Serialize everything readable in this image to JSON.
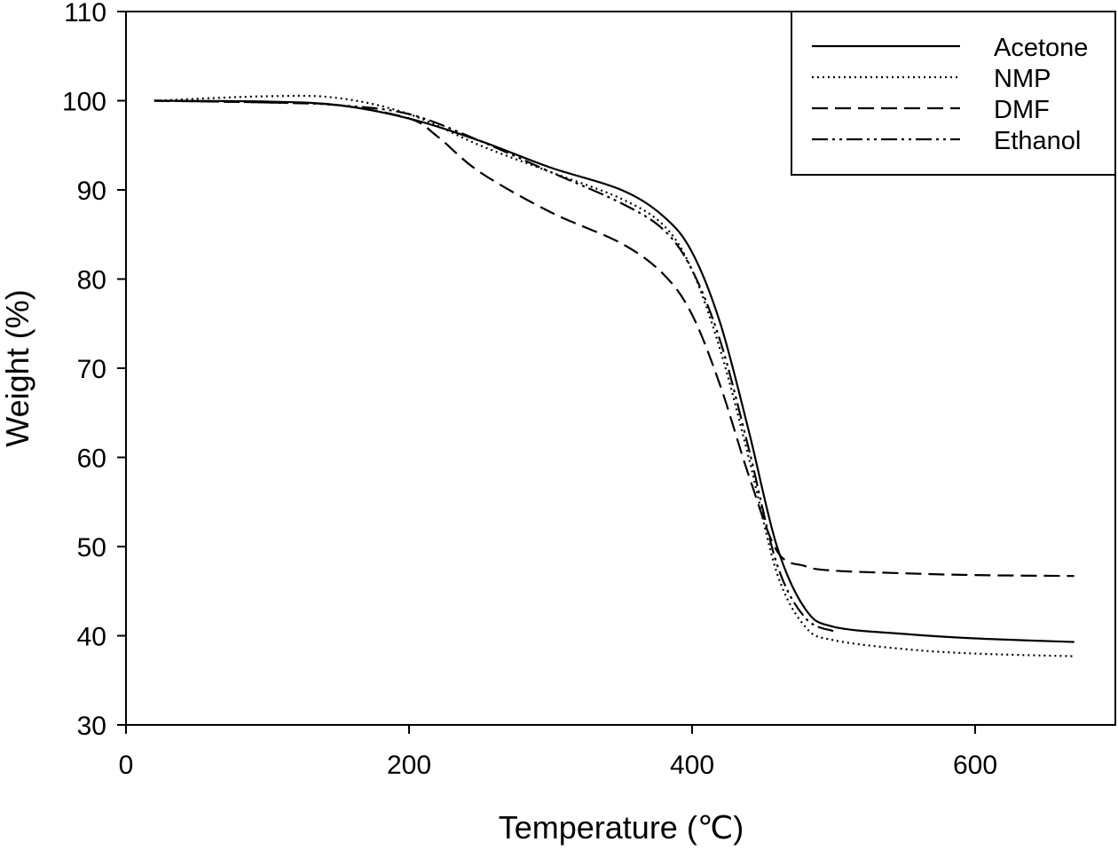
{
  "chart_data": {
    "type": "line",
    "title": "",
    "xlabel": "Temperature (℃)",
    "ylabel": "Weight (%)",
    "xlim": [
      0,
      700
    ],
    "ylim": [
      30,
      110
    ],
    "xticks": [
      0,
      200,
      400,
      600
    ],
    "yticks": [
      30,
      40,
      50,
      60,
      70,
      80,
      90,
      100,
      110
    ],
    "grid": false,
    "legend_position": "top-right",
    "series": [
      {
        "name": "Acetone",
        "style": "solid",
        "x": [
          20,
          100,
          150,
          200,
          250,
          300,
          350,
          380,
          400,
          420,
          440,
          460,
          480,
          500,
          550,
          600,
          670
        ],
        "y": [
          100,
          99.9,
          99.5,
          98,
          95.5,
          92.5,
          90,
          87,
          83,
          75,
          63,
          50,
          43,
          41,
          40.2,
          39.7,
          39.3
        ]
      },
      {
        "name": "NMP",
        "style": "dotted",
        "x": [
          20,
          100,
          150,
          200,
          250,
          300,
          350,
          380,
          400,
          420,
          440,
          460,
          480,
          500,
          550,
          600,
          670
        ],
        "y": [
          100,
          100.5,
          100.3,
          98.5,
          95,
          92,
          89,
          86,
          81,
          72,
          60,
          47,
          41,
          39.5,
          38.5,
          38,
          37.7
        ]
      },
      {
        "name": "DMF",
        "style": "dashed",
        "x": [
          20,
          100,
          150,
          200,
          220,
          250,
          300,
          350,
          380,
          400,
          420,
          440,
          460,
          480,
          500,
          550,
          600,
          670
        ],
        "y": [
          100,
          99.8,
          99.5,
          98,
          96,
          92,
          87.5,
          84,
          80.5,
          76,
          68,
          58,
          49.5,
          47.8,
          47.3,
          47,
          46.8,
          46.7
        ]
      },
      {
        "name": "Ethanol",
        "style": "dashdotdot",
        "x": [
          20,
          100,
          150,
          200,
          250,
          300,
          350,
          380,
          400,
          420,
          440,
          460,
          480,
          500
        ],
        "y": [
          100,
          99.8,
          99.5,
          98.5,
          95.5,
          92,
          88.5,
          85.5,
          81,
          73,
          61,
          48,
          42,
          40.5
        ]
      }
    ]
  }
}
